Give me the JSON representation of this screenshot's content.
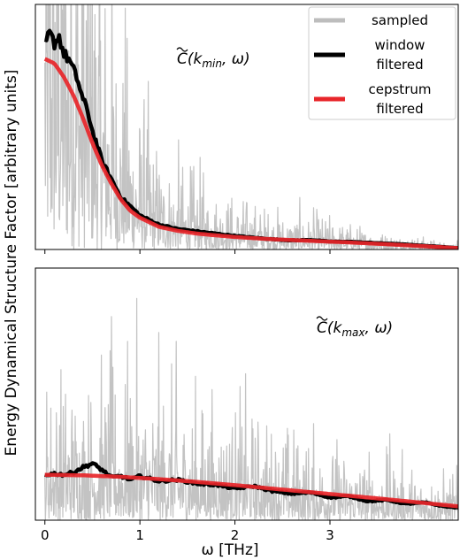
{
  "chart_data": [
    {
      "type": "line",
      "panel": "top",
      "annotation": "C̃(k_min, ω)",
      "annotation_parts": {
        "symbol": "C",
        "sub": "min",
        "rest_open": "(k",
        "rest_close": ", ω)"
      },
      "xlim": [
        -0.1,
        4.35
      ],
      "ylim": [
        0,
        1.08
      ],
      "legend": {
        "placement": "top-right",
        "entries": [
          {
            "label_lines": [
              "sampled"
            ],
            "color": "#bdbdbd"
          },
          {
            "label_lines": [
              "window",
              "filtered"
            ],
            "color": "#000000"
          },
          {
            "label_lines": [
              "cepstrum",
              "filtered"
            ],
            "color": "#e8262a"
          }
        ]
      },
      "series": [
        {
          "name": "sampled",
          "color": "#bdbdbd",
          "style": "noisy",
          "x": [
            0,
            0.2,
            0.4,
            0.6,
            0.8,
            1.0,
            1.2,
            1.5,
            2.0,
            2.5,
            3.0,
            3.5,
            4.0,
            4.35
          ],
          "y": [
            0.78,
            0.76,
            0.66,
            0.46,
            0.3,
            0.2,
            0.14,
            0.1,
            0.07,
            0.05,
            0.04,
            0.025,
            0.015,
            0.008
          ]
        },
        {
          "name": "window filtered",
          "color": "#000000",
          "x": [
            0,
            0.05,
            0.1,
            0.15,
            0.2,
            0.25,
            0.3,
            0.35,
            0.4,
            0.45,
            0.5,
            0.55,
            0.6,
            0.7,
            0.8,
            0.9,
            1.0,
            1.2,
            1.4,
            1.6,
            1.8,
            2.0,
            2.2,
            2.4,
            2.6,
            2.8,
            3.0,
            3.2,
            3.4,
            3.6,
            3.8,
            4.0,
            4.2,
            4.35
          ],
          "y": [
            0.9,
            0.95,
            0.91,
            0.94,
            0.86,
            0.84,
            0.79,
            0.74,
            0.66,
            0.61,
            0.52,
            0.46,
            0.39,
            0.31,
            0.23,
            0.19,
            0.15,
            0.11,
            0.09,
            0.08,
            0.07,
            0.06,
            0.052,
            0.045,
            0.04,
            0.042,
            0.035,
            0.034,
            0.03,
            0.026,
            0.022,
            0.016,
            0.011,
            0.006
          ]
        },
        {
          "name": "cepstrum filtered",
          "color": "#e8262a",
          "x": [
            0,
            0.1,
            0.2,
            0.3,
            0.4,
            0.5,
            0.6,
            0.7,
            0.8,
            0.9,
            1.0,
            1.2,
            1.4,
            1.6,
            1.8,
            2.0,
            2.4,
            2.8,
            3.2,
            3.6,
            4.0,
            4.35
          ],
          "y": [
            0.84,
            0.82,
            0.76,
            0.68,
            0.58,
            0.47,
            0.37,
            0.29,
            0.22,
            0.17,
            0.14,
            0.1,
            0.082,
            0.07,
            0.062,
            0.055,
            0.045,
            0.038,
            0.031,
            0.023,
            0.014,
            0.006
          ]
        }
      ]
    },
    {
      "type": "line",
      "panel": "bottom",
      "annotation": "C̃(k_max, ω)",
      "annotation_parts": {
        "symbol": "C",
        "sub": "max",
        "rest_open": "(k",
        "rest_close": ", ω)"
      },
      "xlim": [
        -0.1,
        4.35
      ],
      "ylim": [
        0,
        1.0
      ],
      "xlabel": "ω [THz]",
      "xticks": [
        0,
        1,
        2,
        3
      ],
      "series": [
        {
          "name": "sampled",
          "color": "#bdbdbd",
          "style": "noisy",
          "x": [
            0,
            1,
            2,
            3,
            4,
            4.35
          ],
          "y": [
            0.18,
            0.17,
            0.13,
            0.09,
            0.06,
            0.05
          ]
        },
        {
          "name": "window filtered",
          "color": "#000000",
          "x": [
            0,
            0.1,
            0.2,
            0.3,
            0.4,
            0.5,
            0.6,
            0.7,
            0.8,
            0.9,
            1.0,
            1.2,
            1.4,
            1.6,
            1.8,
            2.0,
            2.2,
            2.4,
            2.6,
            2.8,
            3.0,
            3.2,
            3.4,
            3.6,
            3.8,
            4.0,
            4.2,
            4.35
          ],
          "y": [
            0.18,
            0.185,
            0.18,
            0.19,
            0.21,
            0.225,
            0.2,
            0.17,
            0.175,
            0.16,
            0.175,
            0.155,
            0.16,
            0.145,
            0.14,
            0.125,
            0.135,
            0.115,
            0.105,
            0.11,
            0.09,
            0.095,
            0.075,
            0.08,
            0.065,
            0.07,
            0.055,
            0.05
          ]
        },
        {
          "name": "cepstrum filtered",
          "color": "#e8262a",
          "x": [
            0,
            0.4,
            0.8,
            1.2,
            1.6,
            2.0,
            2.4,
            2.8,
            3.2,
            3.6,
            4.0,
            4.35
          ],
          "y": [
            0.18,
            0.178,
            0.172,
            0.163,
            0.152,
            0.139,
            0.125,
            0.111,
            0.097,
            0.083,
            0.068,
            0.055
          ]
        }
      ]
    }
  ],
  "shared": {
    "ylabel": "Energy Dynamical Structure Factor [arbitrary units]"
  }
}
